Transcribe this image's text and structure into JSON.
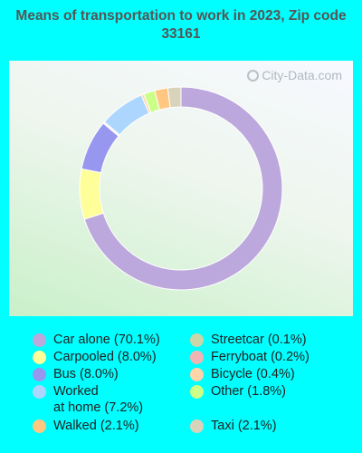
{
  "title": "Means of transportation to work in 2023, Zip code 33161",
  "watermark": "City-Data.com",
  "chart_data": {
    "type": "pie",
    "style": "donut",
    "slices": [
      {
        "label": "Car alone (70.1%)",
        "value": 70.1,
        "color": "#bca8dc"
      },
      {
        "label": "Carpooled (8.0%)",
        "value": 8.0,
        "color": "#ffff99"
      },
      {
        "label": "Bus (8.0%)",
        "value": 8.0,
        "color": "#9797f0"
      },
      {
        "label": "Streetcar (0.1%)",
        "value": 0.1,
        "color": "#c9d6a8"
      },
      {
        "label": "Ferryboat (0.2%)",
        "value": 0.2,
        "color": "#f0b4b4"
      },
      {
        "label": "Worked\nat home (7.2%)",
        "value": 7.2,
        "color": "#add6ff"
      },
      {
        "label": "Bicycle (0.4%)",
        "value": 0.4,
        "color": "#ffd4a8"
      },
      {
        "label": "Other (1.8%)",
        "value": 1.8,
        "color": "#ccff88"
      },
      {
        "label": "Walked (2.1%)",
        "value": 2.1,
        "color": "#ffc77f"
      },
      {
        "label": "Taxi (2.1%)",
        "value": 2.1,
        "color": "#d9d3bb"
      }
    ]
  }
}
